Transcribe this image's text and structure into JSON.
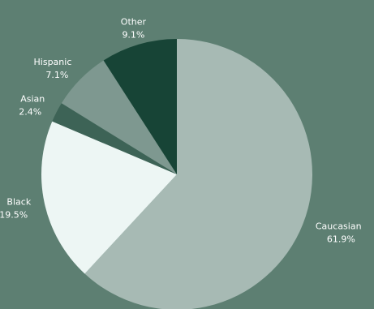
{
  "chart_data": {
    "type": "pie",
    "start_angle_deg": 0,
    "direction": "clockwise",
    "slices": [
      {
        "name": "Caucasian",
        "value": 61.9,
        "label": "61.9%",
        "color": "#a7bab4"
      },
      {
        "name": "Black",
        "value": 19.5,
        "label": "19.5%",
        "color": "#edf6f4"
      },
      {
        "name": "Asian",
        "value": 2.4,
        "label": "2.4%",
        "color": "#3d6356"
      },
      {
        "name": "Hispanic",
        "value": 7.1,
        "label": "7.1%",
        "color": "#7e9890"
      },
      {
        "name": "Other",
        "value": 9.1,
        "label": "9.1%",
        "color": "#174436"
      }
    ]
  },
  "colors": {
    "background": "#5d7f72",
    "label_text": "#ffffff"
  }
}
